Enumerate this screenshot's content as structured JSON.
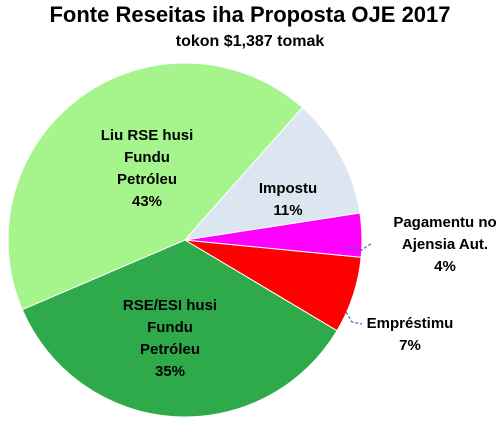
{
  "chart_data": {
    "type": "pie",
    "title": "Fonte Reseitas iha Proposta OJE 2017",
    "subtitle": "tokon $1,387 tomak",
    "categories": [
      "Impostu",
      "Pagamentu no Ajensia Aut.",
      "Empréstimu",
      "RSE/ESI husi Fundu Petróleu",
      "Liu RSE husi Fundu Petróleu"
    ],
    "values": [
      11,
      4,
      7,
      35,
      43
    ],
    "value_labels": [
      "11%",
      "4%",
      "7%",
      "35%",
      "43%"
    ],
    "colors": [
      "#dce6f0",
      "#ff00ff",
      "#ff0000",
      "#2eaa4a",
      "#a6f58c"
    ]
  }
}
